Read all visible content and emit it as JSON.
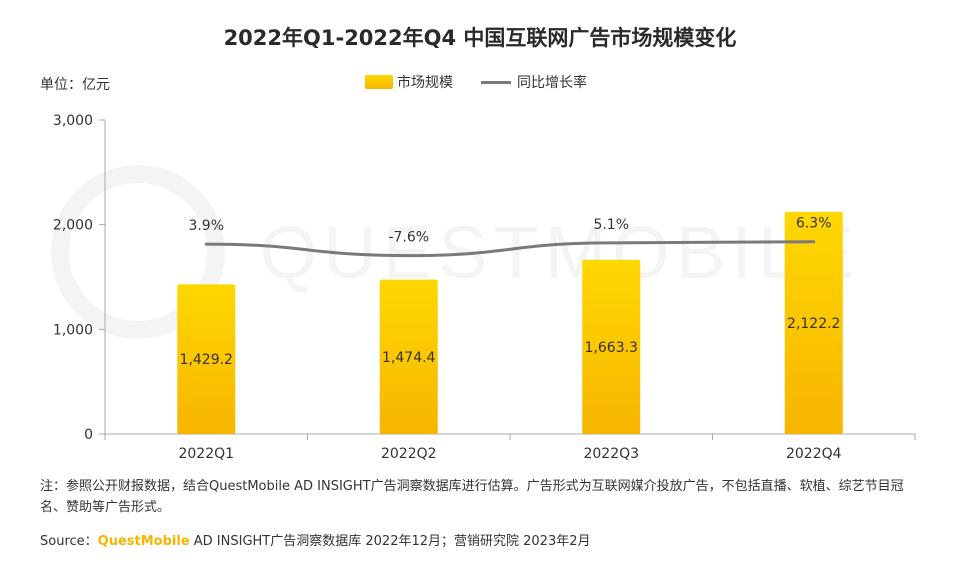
{
  "title": "2022年Q1-2022年Q4 中国互联网广告市场规模变化",
  "unit_label": "单位：亿元",
  "legend": {
    "bar": "市场规模",
    "line": "同比增长率"
  },
  "note": "注：参照公开财报数据，结合QuestMobile AD INSIGHT广告洞察数据库进行估算。广告形式为互联网媒介投放广告，不包括直播、软植、综艺节目冠名、赞助等广告形式。",
  "source": {
    "prefix": "Source：",
    "brand": "QuestMobile",
    "rest": " AD INSIGHT广告洞察数据库 2022年12月；营销研究院 2023年2月"
  },
  "watermark": "QUESTMOBILE",
  "colors": {
    "bar_top": "#ffd700",
    "bar_bottom": "#f7b500",
    "line": "#7a7a7a",
    "axis": "#aaaaaa"
  },
  "chart_data": {
    "type": "bar",
    "categories": [
      "2022Q1",
      "2022Q2",
      "2022Q3",
      "2022Q4"
    ],
    "series": [
      {
        "name": "市场规模",
        "type": "bar",
        "values": [
          1429.2,
          1474.4,
          1663.3,
          2122.2
        ],
        "labels": [
          "1,429.2",
          "1,474.4",
          "1,663.3",
          "2,122.2"
        ]
      },
      {
        "name": "同比增长率",
        "type": "line",
        "values": [
          3.9,
          -7.6,
          5.1,
          6.3
        ],
        "labels": [
          "3.9%",
          "-7.6%",
          "5.1%",
          "6.3%"
        ]
      }
    ],
    "ylim": [
      0,
      3000
    ],
    "yticks": [
      0,
      1000,
      2000,
      3000
    ],
    "ytick_labels": [
      "0",
      "1,000",
      "2,000",
      "3,000"
    ],
    "ylabel": "单位：亿元",
    "legend_position": "top-center",
    "grid": false
  }
}
